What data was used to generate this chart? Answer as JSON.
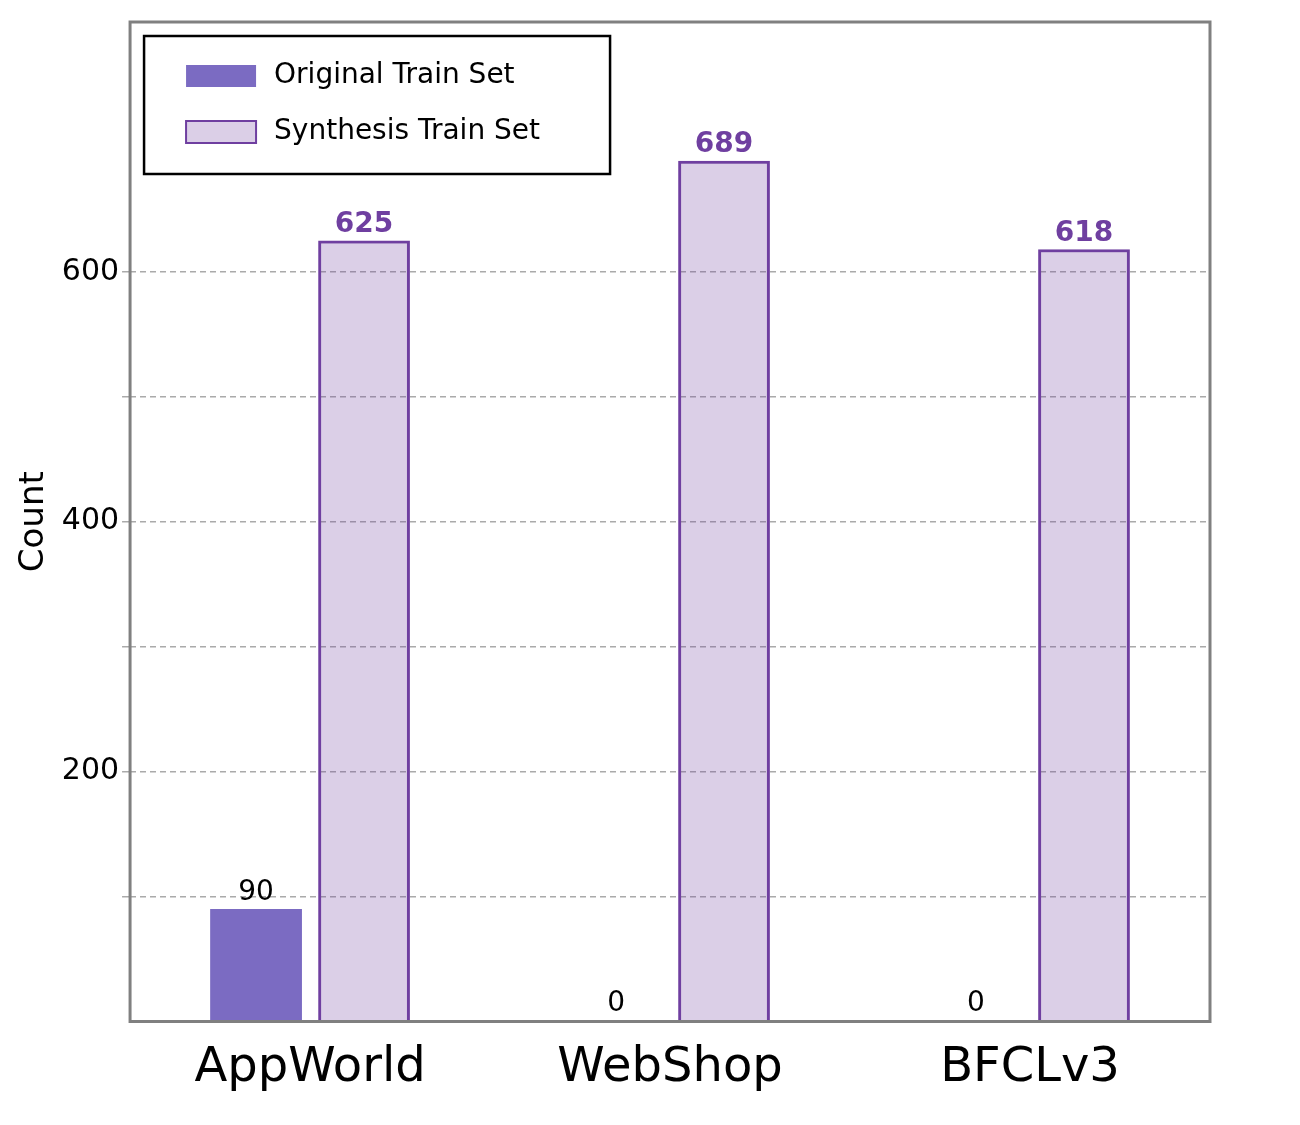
{
  "chart_data": {
    "type": "bar",
    "ylabel": "Count",
    "categories": [
      "AppWorld",
      "WebShop",
      "BFCLv3"
    ],
    "series": [
      {
        "name": "Original Train Set",
        "color": "#7b6bc2",
        "values": [
          90,
          0,
          0
        ]
      },
      {
        "name": "Synthesis Train Set",
        "color": "#6f3fa0",
        "values": [
          625,
          689,
          618
        ]
      }
    ],
    "ylim": [
      0,
      800
    ],
    "yticks": [
      {
        "value": 100,
        "label": null
      },
      200,
      {
        "value": 300,
        "label": null
      },
      400,
      {
        "value": 500,
        "label": null
      },
      600
    ],
    "grid": "y",
    "legend": "top left",
    "data_labels": true
  }
}
